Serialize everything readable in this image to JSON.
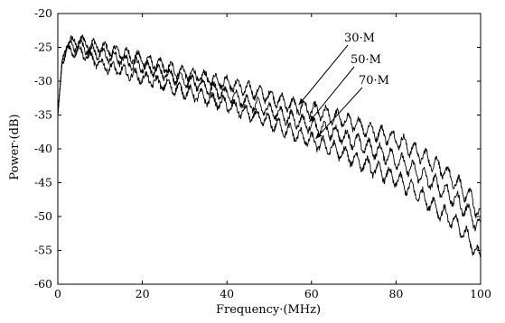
{
  "chart_data": {
    "type": "line",
    "title": "",
    "xlabel": "Frequency·(MHz)",
    "ylabel": "Power·(dB)",
    "xlim": [
      0,
      100
    ],
    "ylim": [
      -60,
      -20
    ],
    "xticks": [
      0,
      20,
      40,
      60,
      80,
      100
    ],
    "yticks": [
      -20,
      -25,
      -30,
      -35,
      -40,
      -45,
      -50,
      -55,
      -60
    ],
    "xtick_labels": [
      "0",
      "20",
      "40",
      "60",
      "80",
      "100"
    ],
    "ytick_labels": [
      "-20",
      "-25",
      "-30",
      "-35",
      "-40",
      "-45",
      "-50",
      "-55",
      "-60"
    ],
    "grid": false,
    "legend": "none",
    "series": [
      {
        "name": "30·M",
        "color": "#000000",
        "x": [
          0,
          1,
          2,
          5,
          10,
          15,
          20,
          25,
          30,
          35,
          40,
          45,
          50,
          55,
          60,
          65,
          70,
          75,
          80,
          85,
          90,
          95,
          98,
          100
        ],
        "y": [
          -35,
          -27,
          -24.5,
          -24,
          -25,
          -25.8,
          -26.8,
          -27.8,
          -28.8,
          -29.5,
          -30.2,
          -31.2,
          -32.2,
          -33.5,
          -34.2,
          -35.2,
          -36.2,
          -37.5,
          -38.5,
          -40.5,
          -42.5,
          -45.5,
          -47.5,
          -50
        ]
      },
      {
        "name": "50·M",
        "color": "#000000",
        "x": [
          0,
          1,
          2,
          5,
          10,
          15,
          20,
          25,
          30,
          35,
          40,
          45,
          50,
          55,
          60,
          65,
          70,
          75,
          80,
          85,
          90,
          95,
          98,
          100
        ],
        "y": [
          -35,
          -27,
          -25,
          -24.7,
          -26,
          -26.8,
          -27.8,
          -28.8,
          -29.8,
          -30.8,
          -32,
          -33.2,
          -34.2,
          -35.5,
          -36.5,
          -37.5,
          -38.8,
          -40.2,
          -41.5,
          -43.5,
          -45.5,
          -48,
          -50,
          -52
        ]
      },
      {
        "name": "70·M",
        "color": "#000000",
        "x": [
          0,
          1,
          2,
          5,
          10,
          15,
          20,
          25,
          30,
          35,
          40,
          45,
          50,
          55,
          60,
          65,
          70,
          75,
          80,
          85,
          90,
          95,
          98,
          100
        ],
        "y": [
          -35,
          -27.5,
          -25.5,
          -25.5,
          -27.5,
          -28.5,
          -29.5,
          -30.5,
          -31.5,
          -32.5,
          -33.5,
          -34.8,
          -36,
          -37.5,
          -38.8,
          -40,
          -41.5,
          -43,
          -44.5,
          -46.5,
          -49,
          -51.5,
          -54,
          -56.5
        ]
      }
    ],
    "annotations": [
      {
        "text": "30·M",
        "series": "30·M",
        "point": [
          57,
          -33.5
        ]
      },
      {
        "text": "50·M",
        "series": "50·M",
        "point": [
          59.5,
          -36
        ]
      },
      {
        "text": "70·M",
        "series": "70·M",
        "point": [
          61,
          -38.5
        ]
      }
    ]
  }
}
